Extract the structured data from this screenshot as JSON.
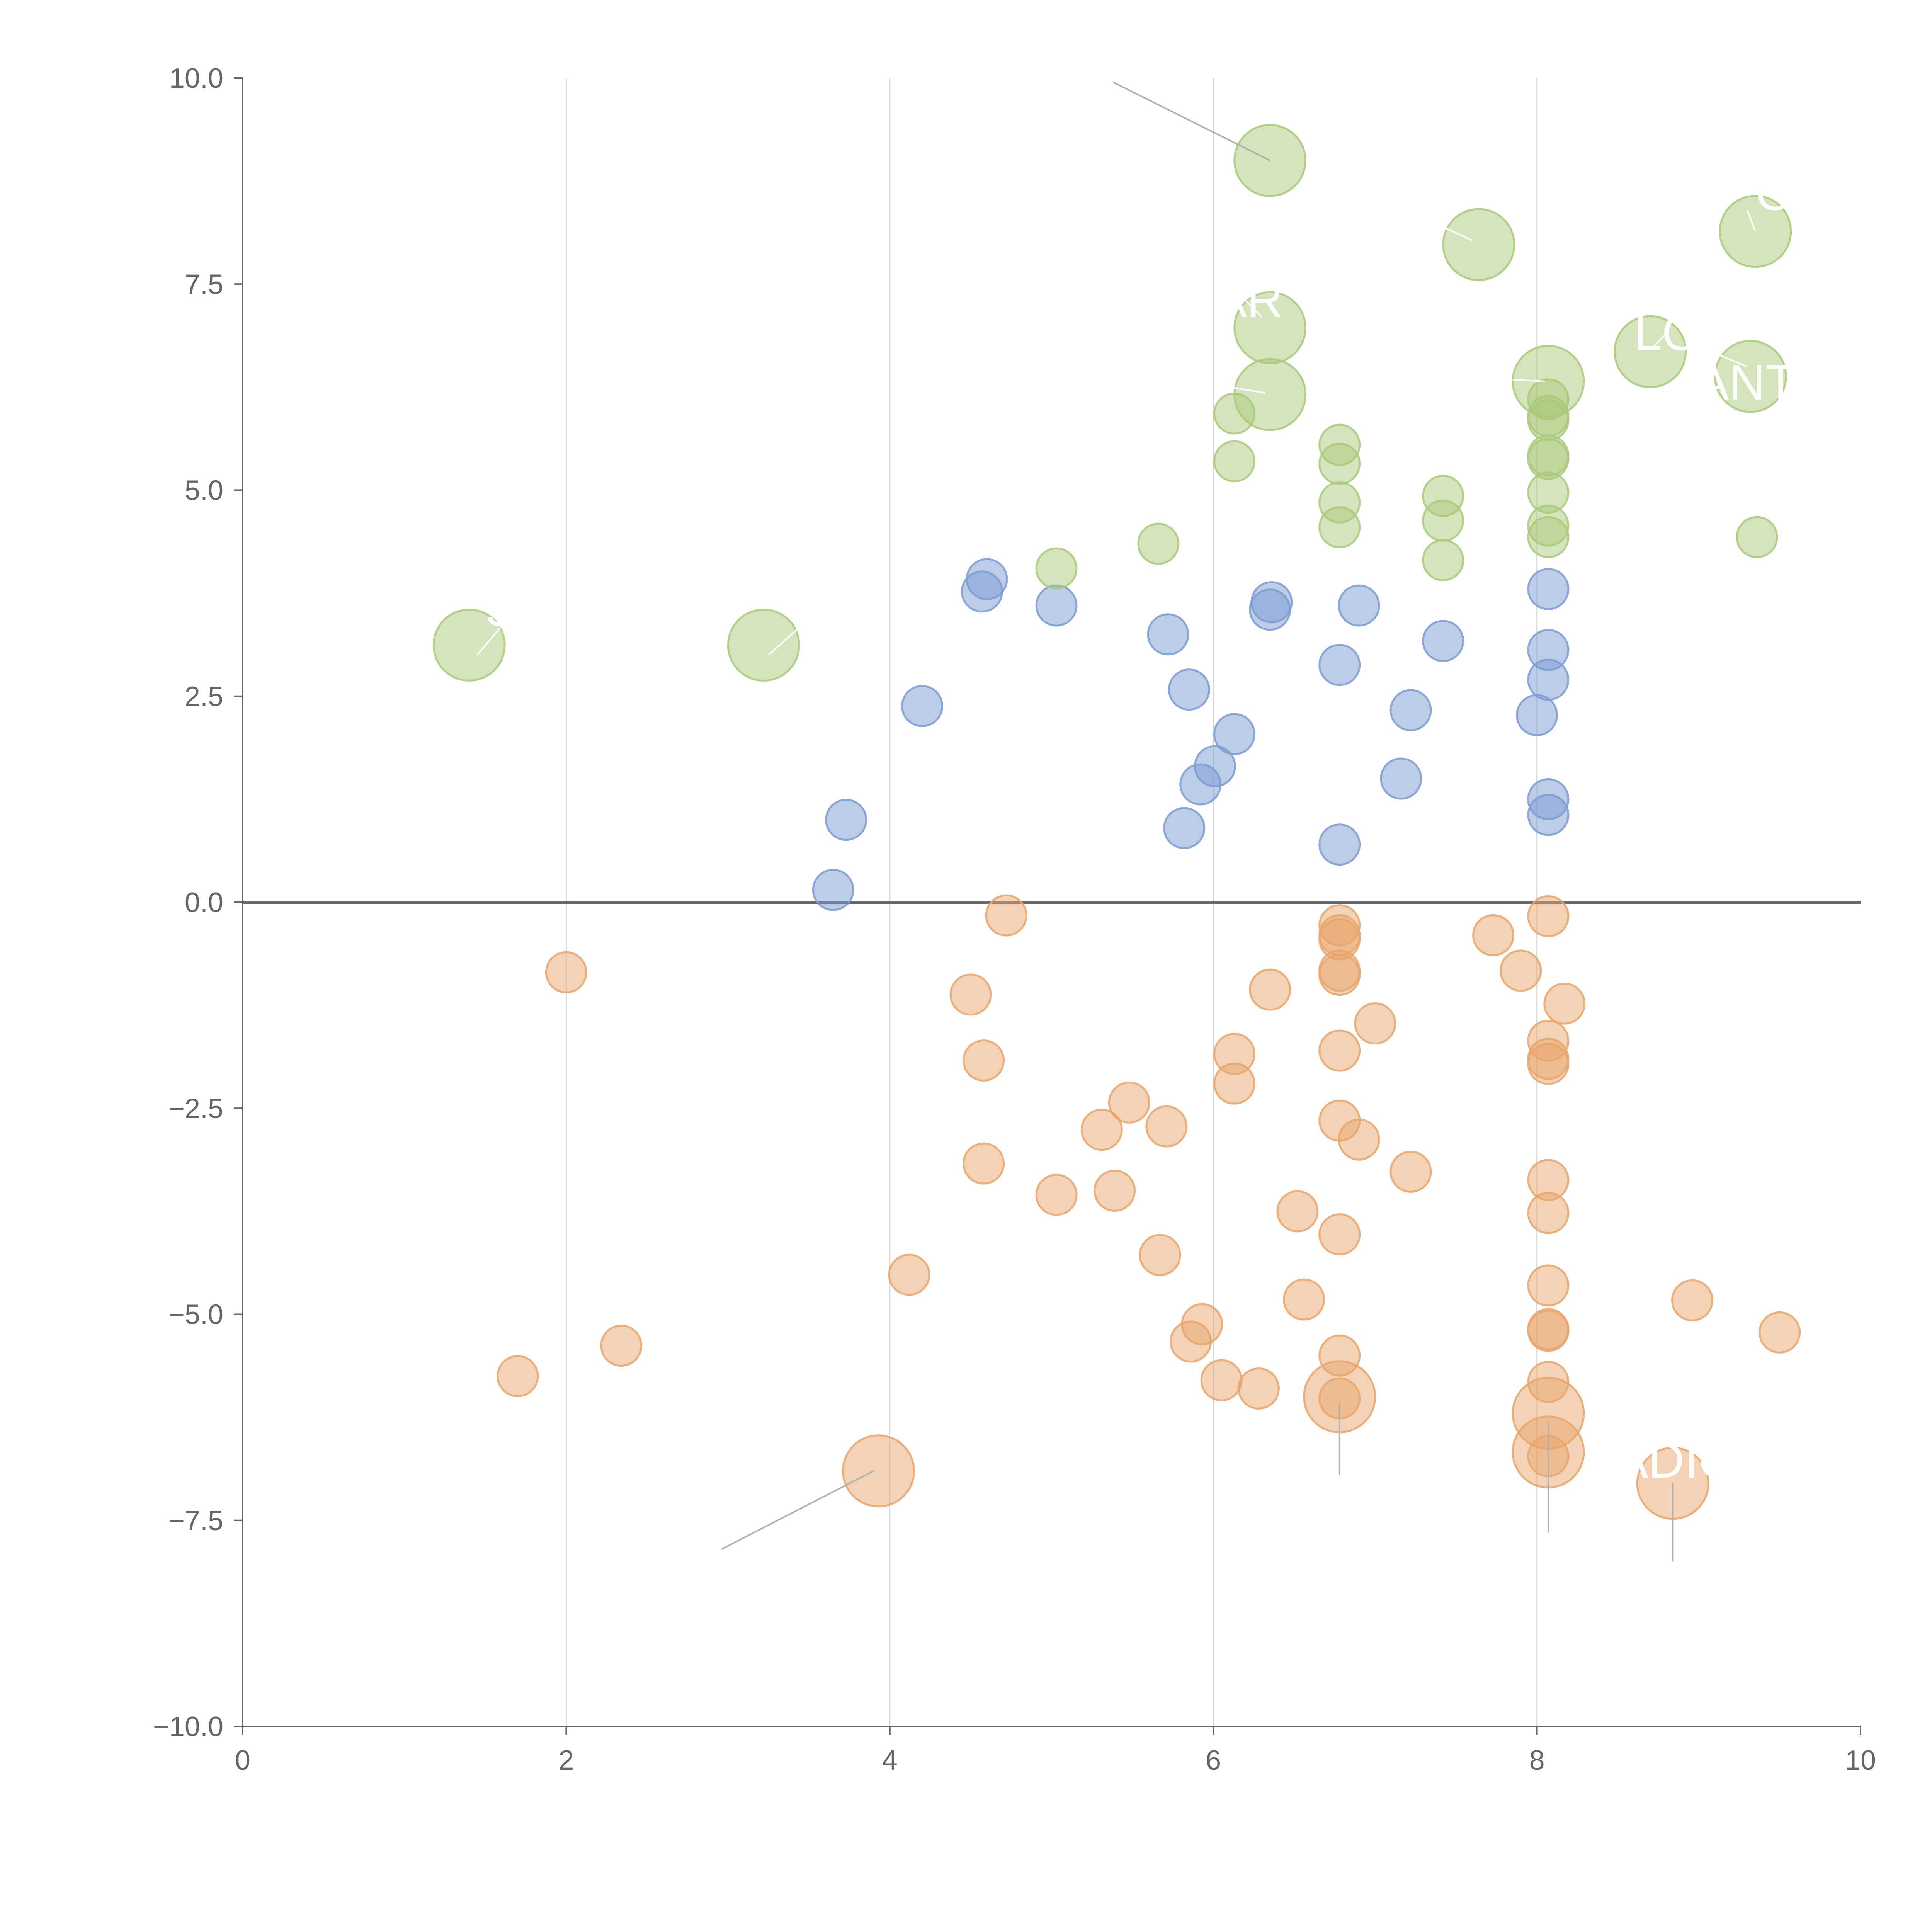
{
  "chart_data": {
    "type": "scatter",
    "title": "",
    "xlabel": "",
    "ylabel": "",
    "xlim": [
      0,
      10
    ],
    "ylim": [
      -10,
      10
    ],
    "x_ticks": [
      0,
      2,
      4,
      6,
      8,
      10
    ],
    "x_tick_labels": [
      "0",
      "2",
      "4",
      "6",
      "8",
      "10"
    ],
    "y_ticks": [
      10,
      7.5,
      5,
      2.5,
      0,
      -2.5,
      -5,
      -7.5,
      -10
    ],
    "y_tick_labels": [
      "10.0",
      "7.5",
      "5.0",
      "2.5",
      "0.0",
      "−2.5",
      "−5.0",
      "−7.5",
      "−10.0"
    ],
    "grid": "vertical",
    "reference_line_y": 0,
    "colors": {
      "blue": "#7b9bd2",
      "green": "#a9c97a",
      "orange": "#e8a56b",
      "axis": "#666666",
      "grid": "#d6d6d6",
      "callout": "#b0b0b0",
      "label": "#ffffff"
    },
    "series": [
      {
        "name": "blue",
        "color": "#7b9bd2",
        "x": [
          3.65,
          3.73,
          4.2,
          4.57,
          4.6,
          5.03,
          5.72,
          5.82,
          5.85,
          5.92,
          6.01,
          6.13,
          6.35,
          6.36,
          6.78,
          6.78,
          6.9,
          7.16,
          7.22,
          7.42,
          8.0,
          8.07,
          8.07,
          8.07,
          8.07,
          8.07
        ],
        "y": [
          0.15,
          1.0,
          2.38,
          3.77,
          3.92,
          3.6,
          3.25,
          0.9,
          2.58,
          1.43,
          1.65,
          2.04,
          3.55,
          3.64,
          2.88,
          0.7,
          3.6,
          1.5,
          2.33,
          3.17,
          2.27,
          3.8,
          3.06,
          2.7,
          1.25,
          1.06
        ],
        "size": [
          1,
          1,
          1,
          1,
          1,
          1,
          1,
          1,
          1,
          1,
          1,
          1,
          1,
          1,
          1,
          1,
          1,
          1,
          1,
          1,
          1,
          1,
          1,
          1,
          1,
          1
        ]
      },
      {
        "name": "green",
        "color": "#a9c97a",
        "x": [
          1.4,
          3.22,
          5.03,
          5.66,
          6.13,
          6.13,
          6.35,
          6.35,
          6.35,
          6.78,
          6.78,
          6.78,
          6.78,
          7.42,
          7.42,
          7.42,
          7.64,
          8.07,
          8.07,
          8.07,
          8.07,
          8.07,
          8.07,
          8.07,
          8.07,
          8.07,
          8.7,
          9.32,
          9.35,
          9.36
        ],
        "y": [
          3.12,
          3.12,
          4.05,
          4.35,
          5.35,
          5.93,
          9.0,
          6.97,
          6.16,
          5.55,
          5.32,
          4.85,
          4.55,
          4.93,
          4.63,
          4.15,
          7.98,
          6.32,
          6.1,
          5.9,
          5.85,
          5.42,
          5.38,
          4.97,
          4.57,
          4.43,
          6.68,
          6.38,
          8.14,
          4.43
        ],
        "size": [
          2,
          2,
          1,
          1,
          1,
          1,
          2,
          2,
          2,
          1,
          1,
          1,
          1,
          1,
          1,
          1,
          2,
          2,
          1,
          1,
          1,
          1,
          1,
          1,
          1,
          1,
          2,
          2,
          2,
          1
        ]
      },
      {
        "name": "orange",
        "color": "#e8a56b",
        "x": [
          1.7,
          2.0,
          2.34,
          3.93,
          4.12,
          4.5,
          4.58,
          4.58,
          4.72,
          5.03,
          5.31,
          5.39,
          5.48,
          5.67,
          5.71,
          5.86,
          5.93,
          6.05,
          6.13,
          6.13,
          6.28,
          6.35,
          6.52,
          6.56,
          6.78,
          6.78,
          6.78,
          6.78,
          6.78,
          6.78,
          6.78,
          6.78,
          6.78,
          6.78,
          6.78,
          6.9,
          7.0,
          7.22,
          7.73,
          7.9,
          8.07,
          8.07,
          8.07,
          8.07,
          8.07,
          8.07,
          8.07,
          8.07,
          8.07,
          8.07,
          8.07,
          8.07,
          8.07,
          8.17,
          8.84,
          8.96,
          9.5
        ],
        "y": [
          -5.75,
          -0.85,
          -5.38,
          -6.9,
          -4.52,
          -1.12,
          -1.92,
          -3.17,
          -0.16,
          -3.55,
          -2.76,
          -3.5,
          -2.43,
          -4.28,
          -2.72,
          -5.33,
          -5.12,
          -5.8,
          -1.84,
          -2.2,
          -5.9,
          -1.06,
          -3.75,
          -4.82,
          -0.28,
          -0.4,
          -0.45,
          -0.83,
          -0.88,
          -1.8,
          -2.65,
          -4.03,
          -5.5,
          -6.0,
          -6.02,
          -2.88,
          -1.47,
          -3.27,
          -0.4,
          -0.83,
          -0.17,
          -1.68,
          -1.9,
          -1.96,
          -3.37,
          -3.77,
          -4.65,
          -5.18,
          -5.2,
          -5.82,
          -6.2,
          -6.67,
          -6.72,
          -1.23,
          -7.05,
          -4.83,
          -5.22
        ],
        "size": [
          1,
          1,
          1,
          2,
          1,
          1,
          1,
          1,
          1,
          1,
          1,
          1,
          1,
          1,
          1,
          1,
          1,
          1,
          1,
          1,
          1,
          1,
          1,
          1,
          1,
          1,
          1,
          1,
          1,
          1,
          1,
          1,
          1,
          2,
          1,
          1,
          1,
          1,
          1,
          1,
          1,
          1,
          1,
          1,
          1,
          1,
          1,
          1,
          1,
          1,
          2,
          2,
          1,
          1,
          2,
          1,
          1
        ]
      }
    ],
    "annotations": [
      {
        "text": "S",
        "color": "#ffffff",
        "line_color": "#ffffff",
        "line_from": [
          1.45,
          3.0
        ],
        "line_to": [
          1.6,
          3.35
        ],
        "text_at": [
          1.5,
          3.35
        ]
      },
      {
        "text": "C",
        "color": "#ffffff",
        "line_color": "#ffffff",
        "line_from": [
          3.25,
          3.0
        ],
        "line_to": [
          3.45,
          3.35
        ],
        "text_at": [
          3.37,
          3.35
        ]
      },
      {
        "text": "",
        "color": "#b0b0b0",
        "line_color": "#b0b0b0",
        "line_from": [
          6.35,
          9.0
        ],
        "line_to": [
          5.38,
          9.95
        ],
        "text_at": [
          5.38,
          9.95
        ]
      },
      {
        "text": "AR",
        "color": "#ffffff",
        "line_color": "#ffffff",
        "line_from": [
          6.3,
          7.1
        ],
        "line_to": [
          6.2,
          7.3
        ],
        "text_at": [
          6.0,
          7.1
        ]
      },
      {
        "text": "",
        "color": "#ffffff",
        "line_color": "#ffffff",
        "line_from": [
          7.6,
          8.03
        ],
        "line_to": [
          7.3,
          8.3
        ],
        "text_at": [
          7.3,
          8.3
        ]
      },
      {
        "text": "",
        "color": "#ffffff",
        "line_color": "#ffffff",
        "line_from": [
          6.32,
          6.18
        ],
        "line_to": [
          6.1,
          6.25
        ],
        "text_at": [
          6.1,
          6.25
        ]
      },
      {
        "text": "",
        "color": "#ffffff",
        "line_color": "#ffffff",
        "line_from": [
          8.05,
          6.32
        ],
        "line_to": [
          7.85,
          6.34
        ],
        "text_at": [
          7.85,
          6.34
        ]
      },
      {
        "text": "LO",
        "color": "#ffffff",
        "line_color": "#ffffff",
        "line_from": [
          8.7,
          6.7
        ],
        "line_to": [
          8.8,
          6.9
        ],
        "text_at": [
          8.6,
          6.7
        ]
      },
      {
        "text": "ANT3",
        "color": "#ffffff",
        "line_color": "#ffffff",
        "line_from": [
          9.3,
          6.5
        ],
        "line_to": [
          9.05,
          6.7
        ],
        "text_at": [
          8.98,
          6.1
        ]
      },
      {
        "text": "OV",
        "color": "#ffffff",
        "line_color": "#ffffff",
        "line_from": [
          9.35,
          8.14
        ],
        "line_to": [
          9.3,
          8.4
        ],
        "text_at": [
          9.35,
          8.4
        ]
      },
      {
        "text": "",
        "color": "#b0b0b0",
        "line_color": "#b0b0b0",
        "line_from": [
          3.9,
          -6.9
        ],
        "line_to": [
          2.96,
          -7.85
        ],
        "text_at": [
          2.96,
          -7.85
        ]
      },
      {
        "text": "",
        "color": "#b0b0b0",
        "line_color": "#b0b0b0",
        "line_from": [
          6.78,
          -6.08
        ],
        "line_to": [
          6.78,
          -6.95
        ],
        "text_at": [
          6.78,
          -6.95
        ]
      },
      {
        "text": "",
        "color": "#b0b0b0",
        "line_color": "#b0b0b0",
        "line_from": [
          8.07,
          -6.3
        ],
        "line_to": [
          8.07,
          -7.65
        ],
        "text_at": [
          8.07,
          -7.65
        ]
      },
      {
        "text": "ADIC",
        "color": "#ffffff",
        "line_color": "#b0b0b0",
        "line_from": [
          8.84,
          -7.05
        ],
        "line_to": [
          8.84,
          -8.0
        ],
        "text_at": [
          8.48,
          -6.98
        ]
      }
    ]
  }
}
